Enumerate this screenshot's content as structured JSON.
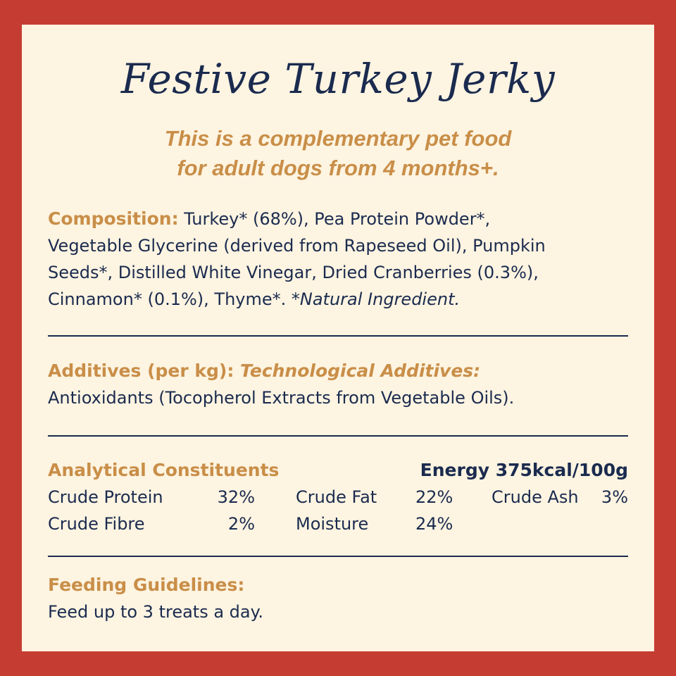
{
  "title": "Festive Turkey Jerky",
  "subtitle_line1": "This is a complementary pet food",
  "subtitle_line2": "for adult dogs from 4 months+.",
  "composition": {
    "label": "Composition:",
    "line1": " Turkey* (68%), Pea Protein Powder*,",
    "line2": "Vegetable Glycerine (derived from Rapeseed Oil), Pumpkin",
    "line3": "Seeds*, Distilled White Vinegar, Dried Cranberries (0.3%),",
    "line4": "Cinnamon* (0.1%), Thyme*. ",
    "note": "*Natural Ingredient."
  },
  "additives": {
    "label": "Additives (per kg):",
    "sublabel": " Technological Additives:",
    "text": "Antioxidants (Tocopherol Extracts from Vegetable Oils)."
  },
  "analytical": {
    "label": "Analytical Constituents",
    "energy": "Energy 375kcal/100g",
    "items": [
      {
        "name": "Crude Protein",
        "value": "32%"
      },
      {
        "name": "Crude Fat",
        "value": "22%"
      },
      {
        "name": "Crude Ash",
        "value": "3%"
      },
      {
        "name": "Crude Fibre",
        "value": "2%"
      },
      {
        "name": "Moisture",
        "value": "24%"
      }
    ]
  },
  "feeding": {
    "label": "Feeding Guidelines:",
    "text": "Feed up to 3 treats a day."
  },
  "colors": {
    "border": "#c53c33",
    "card": "#fdf4e1",
    "navy": "#1b2b4f",
    "gold": "#c98e48"
  }
}
